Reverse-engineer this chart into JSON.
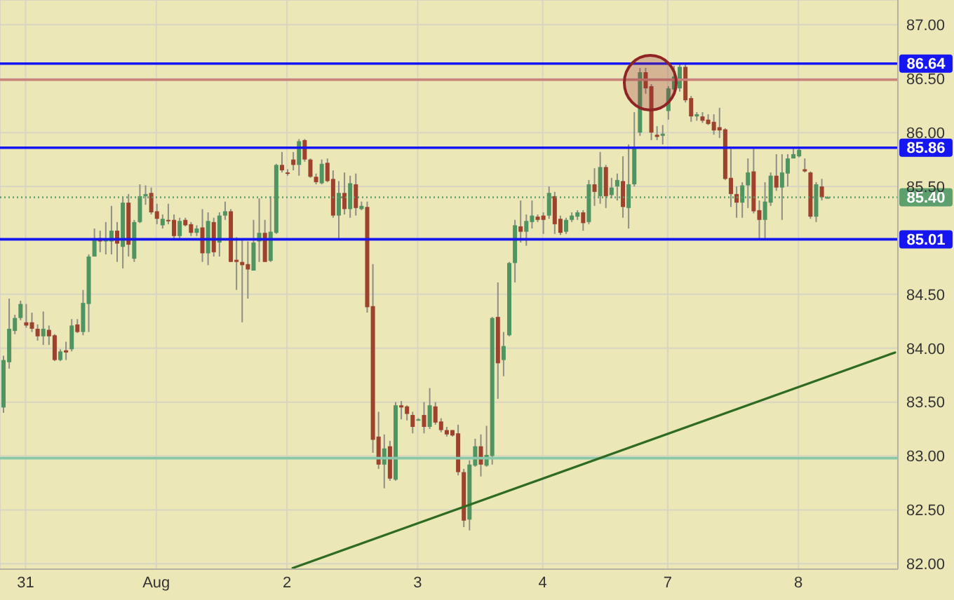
{
  "chart_data": {
    "type": "candlestick",
    "categories": [
      null,
      null,
      null,
      null,
      "31",
      null,
      null,
      null,
      null,
      null,
      null,
      null,
      null,
      null,
      null,
      null,
      null,
      null,
      null,
      null,
      null,
      null,
      null,
      null,
      null,
      null,
      null,
      "Aug",
      null,
      null,
      null,
      null,
      null,
      null,
      null,
      null,
      null,
      null,
      null,
      null,
      null,
      null,
      null,
      null,
      null,
      null,
      null,
      null,
      null,
      null,
      "2",
      null,
      null,
      null,
      null,
      null,
      null,
      null,
      null,
      null,
      null,
      null,
      null,
      null,
      null,
      null,
      null,
      null,
      null,
      null,
      null,
      null,
      null,
      "3",
      null,
      null,
      null,
      null,
      null,
      null,
      null,
      null,
      null,
      null,
      null,
      null,
      null,
      null,
      null,
      null,
      null,
      null,
      null,
      null,
      null,
      "4",
      null,
      null,
      null,
      null,
      null,
      null,
      null,
      null,
      null,
      null,
      null,
      null,
      null,
      null,
      null,
      null,
      null,
      null,
      null,
      null,
      null,
      "7",
      null,
      null,
      null,
      null,
      null,
      null,
      null,
      null,
      null,
      null,
      null,
      null,
      null,
      null,
      null,
      null,
      null,
      null,
      null,
      null,
      null,
      null,
      "8",
      null,
      null,
      null,
      null,
      null,
      null,
      null,
      null,
      null,
      null,
      null,
      null,
      null,
      null,
      null,
      null,
      null
    ],
    "ohlc": [
      [
        83.45,
        83.93,
        83.4,
        83.89
      ],
      [
        83.87,
        84.46,
        83.81,
        84.18
      ],
      [
        84.16,
        84.31,
        84.13,
        84.28
      ],
      [
        84.28,
        84.44,
        84.26,
        84.41
      ],
      [
        84.24,
        84.41,
        84.19,
        84.21
      ],
      [
        84.24,
        84.33,
        84.15,
        84.18
      ],
      [
        84.18,
        84.22,
        84.07,
        84.11
      ],
      [
        84.11,
        84.34,
        84.03,
        84.18
      ],
      [
        84.17,
        84.21,
        84.03,
        84.11
      ],
      [
        84.12,
        84.13,
        83.88,
        83.89
      ],
      [
        83.89,
        83.99,
        83.88,
        83.97
      ],
      [
        83.98,
        84.06,
        83.89,
        83.96
      ],
      [
        83.99,
        84.27,
        83.97,
        84.21
      ],
      [
        84.22,
        84.27,
        84.14,
        84.15
      ],
      [
        84.15,
        84.54,
        84.12,
        84.42
      ],
      [
        84.41,
        84.87,
        84.15,
        84.85
      ],
      [
        84.85,
        85.11,
        84.85,
        85.01
      ],
      [
        85.02,
        85.09,
        84.89,
        84.99
      ],
      [
        84.99,
        85.17,
        84.87,
        85.01
      ],
      [
        84.99,
        85.32,
        84.87,
        85.09
      ],
      [
        85.09,
        85.17,
        84.8,
        84.97
      ],
      [
        84.94,
        85.41,
        84.74,
        85.35
      ],
      [
        85.35,
        85.43,
        84.85,
        84.96
      ],
      [
        84.83,
        85.19,
        84.8,
        85.17
      ],
      [
        85.17,
        85.52,
        85.16,
        85.41
      ],
      [
        85.41,
        85.51,
        85.33,
        85.43
      ],
      [
        85.44,
        85.49,
        85.24,
        85.26
      ],
      [
        85.27,
        85.34,
        85.15,
        85.2
      ],
      [
        85.14,
        85.24,
        85.11,
        85.2
      ],
      [
        85.19,
        85.34,
        85.15,
        85.18
      ],
      [
        85.19,
        85.24,
        85.02,
        85.04
      ],
      [
        85.04,
        85.21,
        85.02,
        85.18
      ],
      [
        85.19,
        85.21,
        85.13,
        85.14
      ],
      [
        85.15,
        85.17,
        85.04,
        85.07
      ],
      [
        85.07,
        85.14,
        85.04,
        85.11
      ],
      [
        85.12,
        85.29,
        84.8,
        84.88
      ],
      [
        84.88,
        85.26,
        84.77,
        85.18
      ],
      [
        85.17,
        85.21,
        84.85,
        84.89
      ],
      [
        84.98,
        85.26,
        84.85,
        85.23
      ],
      [
        85.23,
        85.36,
        85.19,
        85.27
      ],
      [
        85.27,
        85.29,
        84.8,
        84.8
      ],
      [
        84.82,
        85.03,
        84.54,
        84.8
      ],
      [
        84.8,
        85.0,
        84.24,
        84.77
      ],
      [
        84.78,
        84.99,
        84.46,
        84.73
      ],
      [
        84.72,
        85.19,
        84.72,
        84.98
      ],
      [
        84.99,
        85.39,
        84.8,
        85.07
      ],
      [
        85.07,
        85.19,
        84.8,
        84.8
      ],
      [
        84.81,
        85.41,
        84.8,
        85.08
      ],
      [
        85.07,
        85.71,
        85.06,
        85.7
      ],
      [
        85.7,
        85.82,
        85.63,
        85.65
      ],
      [
        85.63,
        85.66,
        85.6,
        85.62
      ],
      [
        85.75,
        85.82,
        85.65,
        85.7
      ],
      [
        85.7,
        85.94,
        85.6,
        85.92
      ],
      [
        85.93,
        85.94,
        85.73,
        85.75
      ],
      [
        85.75,
        85.76,
        85.58,
        85.59
      ],
      [
        85.59,
        85.62,
        85.52,
        85.54
      ],
      [
        85.53,
        85.75,
        85.52,
        85.71
      ],
      [
        85.72,
        85.76,
        85.54,
        85.55
      ],
      [
        85.57,
        85.65,
        85.21,
        85.23
      ],
      [
        85.23,
        85.55,
        85.02,
        85.44
      ],
      [
        85.44,
        85.63,
        85.24,
        85.29
      ],
      [
        85.29,
        85.6,
        85.21,
        85.53
      ],
      [
        85.52,
        85.62,
        85.23,
        85.3
      ],
      [
        85.29,
        85.36,
        85.28,
        85.32
      ],
      [
        85.31,
        85.36,
        84.33,
        84.38
      ],
      [
        84.39,
        84.78,
        83.03,
        83.15
      ],
      [
        83.18,
        83.41,
        82.88,
        82.92
      ],
      [
        82.92,
        83.2,
        82.7,
        83.07
      ],
      [
        83.09,
        83.14,
        82.77,
        82.79
      ],
      [
        82.78,
        83.5,
        82.77,
        83.47
      ],
      [
        83.47,
        83.51,
        83.34,
        83.45
      ],
      [
        83.46,
        83.47,
        83.33,
        83.39
      ],
      [
        83.38,
        83.41,
        83.21,
        83.27
      ],
      [
        83.34,
        83.35,
        83.33,
        83.34
      ],
      [
        83.38,
        83.5,
        83.21,
        83.27
      ],
      [
        83.27,
        83.63,
        83.25,
        83.47
      ],
      [
        83.46,
        83.5,
        83.29,
        83.31
      ],
      [
        83.32,
        83.35,
        83.22,
        83.24
      ],
      [
        83.24,
        83.27,
        83.18,
        83.2
      ],
      [
        83.24,
        83.24,
        83.18,
        83.19
      ],
      [
        83.21,
        83.29,
        82.82,
        82.85
      ],
      [
        82.85,
        82.88,
        82.34,
        82.4
      ],
      [
        82.41,
        82.96,
        82.31,
        82.92
      ],
      [
        82.91,
        83.16,
        82.9,
        83.09
      ],
      [
        83.09,
        83.2,
        82.81,
        82.92
      ],
      [
        82.91,
        83.28,
        82.9,
        83.01
      ],
      [
        83.0,
        84.29,
        82.92,
        84.28
      ],
      [
        84.29,
        84.61,
        83.53,
        83.86
      ],
      [
        83.89,
        84.15,
        83.74,
        84.02
      ],
      [
        84.12,
        84.8,
        84.11,
        84.79
      ],
      [
        84.79,
        85.19,
        84.61,
        85.14
      ],
      [
        85.13,
        85.37,
        84.98,
        85.08
      ],
      [
        85.08,
        85.24,
        84.95,
        85.18
      ],
      [
        85.17,
        85.37,
        85.11,
        85.23
      ],
      [
        85.22,
        85.24,
        85.17,
        85.19
      ],
      [
        85.23,
        85.26,
        85.06,
        85.19
      ],
      [
        85.23,
        85.5,
        85.2,
        85.44
      ],
      [
        85.41,
        85.45,
        85.06,
        85.15
      ],
      [
        85.2,
        85.23,
        85.05,
        85.07
      ],
      [
        85.08,
        85.21,
        85.06,
        85.19
      ],
      [
        85.19,
        85.26,
        85.17,
        85.23
      ],
      [
        85.22,
        85.28,
        85.19,
        85.26
      ],
      [
        85.26,
        85.28,
        85.09,
        85.16
      ],
      [
        85.17,
        85.56,
        85.15,
        85.52
      ],
      [
        85.52,
        85.67,
        85.32,
        85.45
      ],
      [
        85.41,
        85.82,
        85.34,
        85.68
      ],
      [
        85.68,
        85.7,
        85.3,
        85.41
      ],
      [
        85.42,
        85.58,
        85.39,
        85.49
      ],
      [
        85.5,
        85.62,
        85.37,
        85.56
      ],
      [
        85.55,
        85.78,
        85.21,
        85.31
      ],
      [
        85.3,
        85.89,
        85.11,
        85.52
      ],
      [
        85.52,
        86.19,
        85.5,
        85.87
      ],
      [
        86.0,
        86.6,
        85.97,
        86.56
      ],
      [
        86.56,
        86.6,
        86.36,
        86.41
      ],
      [
        86.43,
        86.45,
        85.93,
        86.0
      ],
      [
        85.98,
        86.06,
        85.93,
        85.96
      ],
      [
        85.97,
        86.07,
        85.89,
        85.99
      ],
      [
        86.2,
        86.43,
        86.12,
        86.41
      ],
      [
        86.4,
        86.62,
        86.38,
        86.52
      ],
      [
        86.41,
        86.64,
        86.38,
        86.61
      ],
      [
        86.61,
        86.63,
        86.28,
        86.3
      ],
      [
        86.32,
        86.34,
        86.1,
        86.15
      ],
      [
        86.15,
        86.19,
        86.11,
        86.17
      ],
      [
        86.15,
        86.19,
        86.09,
        86.11
      ],
      [
        86.12,
        86.17,
        86.07,
        86.08
      ],
      [
        86.1,
        86.17,
        85.98,
        86.02
      ],
      [
        86.05,
        86.23,
        85.95,
        86.02
      ],
      [
        86.03,
        86.04,
        85.56,
        85.57
      ],
      [
        85.58,
        85.85,
        85.31,
        85.43
      ],
      [
        85.43,
        85.5,
        85.21,
        85.35
      ],
      [
        85.35,
        85.54,
        85.21,
        85.51
      ],
      [
        85.51,
        85.76,
        85.3,
        85.63
      ],
      [
        85.64,
        85.85,
        85.25,
        85.27
      ],
      [
        85.28,
        85.37,
        85.02,
        85.19
      ],
      [
        85.19,
        85.54,
        85.02,
        85.36
      ],
      [
        85.35,
        85.63,
        85.32,
        85.6
      ],
      [
        85.6,
        85.8,
        85.46,
        85.49
      ],
      [
        85.49,
        85.8,
        85.19,
        85.63
      ],
      [
        85.62,
        85.8,
        85.5,
        85.76
      ],
      [
        85.76,
        85.85,
        85.76,
        85.8
      ],
      [
        85.78,
        85.86,
        85.77,
        85.84
      ],
      [
        85.66,
        85.76,
        85.63,
        85.64
      ],
      [
        85.63,
        85.64,
        85.2,
        85.22
      ],
      [
        85.22,
        85.54,
        85.17,
        85.52
      ],
      [
        85.5,
        85.57,
        85.37,
        85.4
      ],
      [
        85.4,
        85.41,
        85.39,
        85.4
      ],
      null,
      null,
      null,
      null,
      null,
      null,
      null,
      null,
      null,
      null,
      null,
      null
    ],
    "colors": [
      "#4f9461",
      "#4f9461",
      "#4f9461",
      "#4f9461",
      "#9e412d",
      "#9e412d",
      "#9e412d",
      "#4f9461",
      "#9e412d",
      "#9e412d",
      "#4f9461",
      "#9e412d",
      "#4f9461",
      "#9e412d",
      "#4f9461",
      "#4f9461",
      "#4f9461",
      "#9e412d",
      "#4f9461",
      "#4f9461",
      "#9e412d",
      "#4f9461",
      "#9e412d",
      "#4f9461",
      "#4f9461",
      "#4f9461",
      "#9e412d",
      "#9e412d",
      "#4f9461",
      "#9e412d",
      "#9e412d",
      "#4f9461",
      "#9e412d",
      "#9e412d",
      "#4f9461",
      "#9e412d",
      "#4f9461",
      "#9e412d",
      "#4f9461",
      "#4f9461",
      "#9e412d",
      "#9e412d",
      "#9e412d",
      "#9e412d",
      "#4f9461",
      "#4f9461",
      "#9e412d",
      "#4f9461",
      "#4f9461",
      "#9e412d",
      "#9e412d",
      "#9e412d",
      "#4f9461",
      "#9e412d",
      "#9e412d",
      "#9e412d",
      "#4f9461",
      "#9e412d",
      "#9e412d",
      "#4f9461",
      "#9e412d",
      "#4f9461",
      "#9e412d",
      "#4f9461",
      "#9e412d",
      "#9e412d",
      "#9e412d",
      "#4f9461",
      "#9e412d",
      "#4f9461",
      "#9e412d",
      "#9e412d",
      "#9e412d",
      "#4f9461",
      "#9e412d",
      "#4f9461",
      "#9e412d",
      "#9e412d",
      "#9e412d",
      "#9e412d",
      "#9e412d",
      "#9e412d",
      "#4f9461",
      "#4f9461",
      "#9e412d",
      "#4f9461",
      "#4f9461",
      "#9e412d",
      "#4f9461",
      "#4f9461",
      "#4f9461",
      "#9e412d",
      "#4f9461",
      "#4f9461",
      "#9e412d",
      "#9e412d",
      "#4f9461",
      "#9e412d",
      "#9e412d",
      "#4f9461",
      "#4f9461",
      "#4f9461",
      "#9e412d",
      "#4f9461",
      "#9e412d",
      "#4f9461",
      "#9e412d",
      "#4f9461",
      "#4f9461",
      "#9e412d",
      "#4f9461",
      "#4f9461",
      "#4f9461",
      "#9e412d",
      "#9e412d",
      "#9e412d",
      "#4f9461",
      "#4f9461",
      "#4f9461",
      "#4f9461",
      "#9e412d",
      "#9e412d",
      "#4f9461",
      "#9e412d",
      "#9e412d",
      "#9e412d",
      "#9e412d",
      "#9e412d",
      "#9e412d",
      "#9e412d",
      "#4f9461",
      "#4f9461",
      "#9e412d",
      "#9e412d",
      "#4f9461",
      "#4f9461",
      "#9e412d",
      "#4f9461",
      "#4f9461",
      "#4f9461",
      "#4f9461",
      "#9e412d",
      "#9e412d",
      "#4f9461",
      "#9e412d",
      "#4f9461",
      null,
      null,
      null,
      null,
      null,
      null,
      null,
      null,
      null,
      null,
      null,
      null
    ],
    "series": [
      {
        "type": "line",
        "color": "#2f6b22",
        "values": [
          null,
          null,
          null,
          null,
          null,
          null,
          null,
          null,
          null,
          null,
          null,
          null,
          null,
          null,
          null,
          null,
          null,
          null,
          null,
          null,
          null,
          null,
          null,
          null,
          null,
          null,
          null,
          null,
          null,
          null,
          null,
          null,
          null,
          null,
          null,
          null,
          null,
          null,
          null,
          null,
          null,
          null,
          null,
          null,
          null,
          null,
          null,
          null,
          null,
          null,
          null,
          81.96,
          null,
          null,
          null,
          null,
          null,
          null,
          null,
          null,
          null,
          null,
          null,
          null,
          null,
          null,
          null,
          null,
          null,
          null,
          null,
          null,
          null,
          null,
          null,
          null,
          null,
          null,
          null,
          null,
          null,
          null,
          null,
          null,
          null,
          null,
          null,
          null,
          null,
          null,
          null,
          null,
          null,
          null,
          null,
          null,
          null,
          null,
          null,
          null,
          null,
          null,
          null,
          null,
          null,
          null,
          null,
          null,
          null,
          null,
          null,
          null,
          null,
          null,
          null,
          null,
          null,
          null,
          null,
          null,
          null,
          null,
          null,
          null,
          null,
          null,
          null,
          null,
          null,
          null,
          null,
          null,
          null,
          null,
          null,
          null,
          null,
          null,
          null,
          null,
          null,
          null,
          null,
          null,
          null,
          null,
          null,
          null,
          null,
          null,
          null,
          null,
          null,
          null,
          null,
          null,
          null,
          83.96
        ]
      }
    ],
    "ylim": [
      81.95,
      87.23
    ],
    "yticks": [
      {
        "value": 82,
        "label": "82.00"
      },
      {
        "value": 82.5,
        "label": "82.50"
      },
      {
        "value": 83,
        "label": "83.00"
      },
      {
        "value": 83.5,
        "label": "83.50"
      },
      {
        "value": 84,
        "label": "84.00"
      },
      {
        "value": 84.5,
        "label": "84.50"
      },
      {
        "value": 85,
        "label": null
      },
      {
        "value": 85.5,
        "label": "85.50"
      },
      {
        "value": 86,
        "label": "86.00"
      },
      {
        "value": 86.5,
        "label": "86.50"
      },
      {
        "value": 87,
        "label": "87.00"
      }
    ],
    "ref_lines": [
      {
        "axis": "y",
        "value": 86.64,
        "label": "86.64",
        "color": "#1616f2"
      },
      {
        "axis": "y",
        "value": 86.49,
        "color": "#c9837b"
      },
      {
        "axis": "y",
        "value": 85.86,
        "label": "85.86",
        "color": "#1616f2"
      },
      {
        "axis": "y",
        "value": 85.4,
        "label": "85.40",
        "color": "#5e9f6e",
        "line_style": "dotted"
      },
      {
        "axis": "y",
        "value": 85.01,
        "label": "85.01",
        "color": "#1616f2"
      },
      {
        "axis": "y",
        "value": 82.98,
        "color": "#88c9a9"
      }
    ],
    "grid": true
  }
}
